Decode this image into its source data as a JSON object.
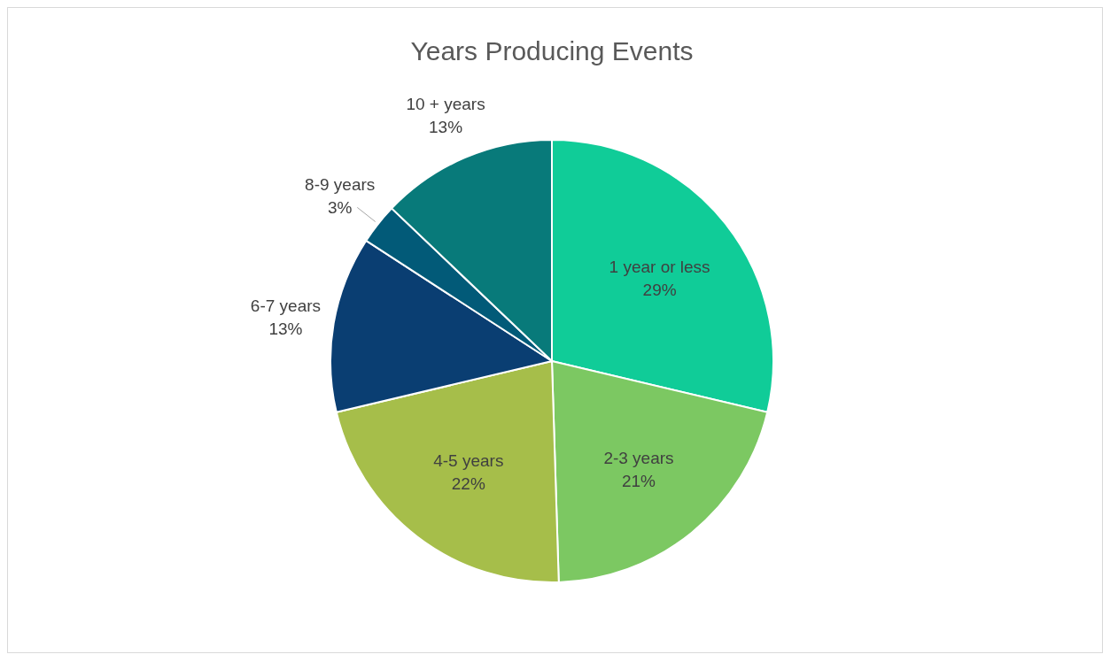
{
  "chart_data": {
    "type": "pie",
    "title": "Years Producing Events",
    "categories": [
      "1 year or less",
      "2-3 years",
      "4-5 years",
      "6-7 years",
      "8-9 years",
      "10 + years"
    ],
    "values": [
      29,
      21,
      22,
      13,
      3,
      13
    ],
    "colors": [
      "#10cc98",
      "#7cc862",
      "#a6be4a",
      "#0a3e72",
      "#025a78",
      "#087a7a"
    ],
    "value_labels": [
      "29%",
      "21%",
      "22%",
      "13%",
      "3%",
      "13%"
    ]
  }
}
